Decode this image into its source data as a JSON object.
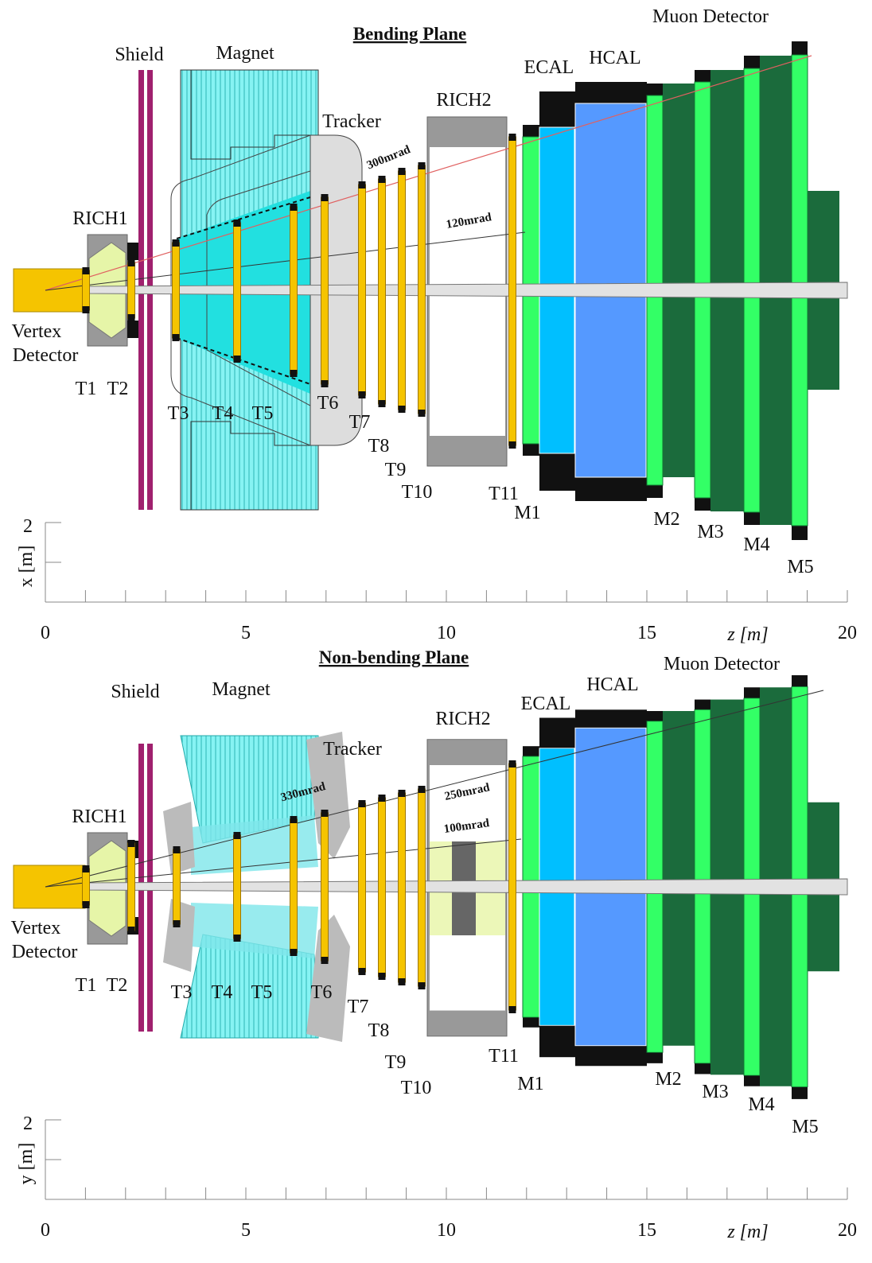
{
  "panels": [
    {
      "title": "Bending Plane",
      "labels": [
        "Muon Detector",
        "Shield",
        "Magnet",
        "Tracker",
        "RICH2",
        "ECAL",
        "HCAL",
        "RICH1",
        "Vertex",
        "Detector",
        "T1",
        "T2",
        "T3",
        "T4",
        "T5",
        "T6",
        "T7",
        "T8",
        "T9",
        "T10",
        "T11",
        "M1",
        "M2",
        "M3",
        "M4",
        "M5"
      ],
      "angles": [
        "300mrad",
        "120mrad"
      ],
      "y_label": "x [m]"
    },
    {
      "title": "Non-bending Plane",
      "labels": [
        "Muon Detector",
        "Shield",
        "Magnet",
        "Tracker",
        "RICH2",
        "ECAL",
        "HCAL",
        "RICH1",
        "Vertex",
        "Detector",
        "T1",
        "T2",
        "T3",
        "T4",
        "T5",
        "T6",
        "T7",
        "T8",
        "T9",
        "T10",
        "T11",
        "M1",
        "M2",
        "M3",
        "M4",
        "M5"
      ],
      "angles": [
        "330mrad",
        "250mrad",
        "100mrad"
      ],
      "y_label": "y [m]"
    }
  ],
  "axis": {
    "x_label": "z [m]",
    "x_ticks": [
      0,
      5,
      10,
      15,
      20
    ],
    "y_tick": 2
  }
}
